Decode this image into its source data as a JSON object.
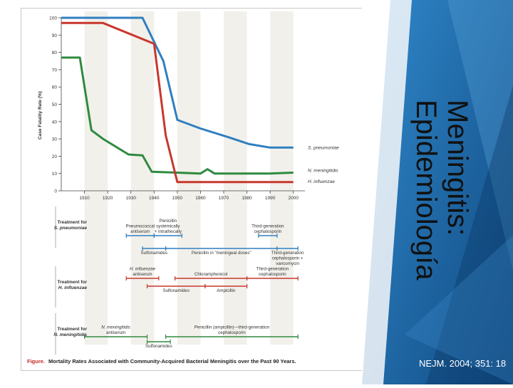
{
  "slide": {
    "title_line1": "Meningitis:",
    "title_line2": "Epidemiología",
    "citation": "NEJM. 2004; 351: 18"
  },
  "figure": {
    "caption_label": "Figure.",
    "caption_text": "Mortality Rates Associated with Community-Acquired Bacterial Meningitis over the Past 90 Years."
  },
  "chart_data": {
    "type": "line",
    "ylabel": "Case Fatality Rate (%)",
    "xlabel": "",
    "xlim": [
      1900,
      2005
    ],
    "ylim": [
      0,
      100
    ],
    "xticks": [
      1910,
      1920,
      1930,
      1940,
      1950,
      1960,
      1970,
      1980,
      1990,
      2000
    ],
    "yticks": [
      0,
      10,
      20,
      30,
      40,
      50,
      60,
      70,
      80,
      90,
      100
    ],
    "shaded_decades": [
      [
        1910,
        1920
      ],
      [
        1930,
        1940
      ],
      [
        1950,
        1960
      ],
      [
        1970,
        1980
      ],
      [
        1990,
        2000
      ]
    ],
    "series": [
      {
        "name": "S. pneumoniae",
        "color": "#2f7fc1",
        "x": [
          1900,
          1935,
          1944,
          1950,
          1960,
          1972,
          1981,
          1990,
          2000
        ],
        "y": [
          100,
          100,
          75,
          41,
          36,
          31,
          27,
          25,
          25
        ]
      },
      {
        "name": "N. meningitidis",
        "color": "#2f8a3f",
        "x": [
          1900,
          1908,
          1913,
          1918,
          1929,
          1935,
          1939,
          1950,
          1960,
          1963,
          1966,
          1972,
          1980,
          1990,
          2000
        ],
        "y": [
          77,
          77,
          35,
          30,
          21,
          20.5,
          11,
          10.5,
          10,
          12.5,
          10,
          10,
          10,
          10,
          10.5
        ]
      },
      {
        "name": "H. influenzae",
        "color": "#c8372d",
        "x": [
          1900,
          1918,
          1940,
          1945,
          1950,
          1960,
          1970,
          1980,
          1990,
          2000
        ],
        "y": [
          97,
          97,
          85,
          32,
          5,
          5,
          5,
          5,
          5,
          5
        ]
      }
    ]
  },
  "treatments": {
    "groups": [
      {
        "label_line1": "Treatment for",
        "label_line2": "S. pneumoniae",
        "items": [
          {
            "line1": "Pneumococcal",
            "line2": "antiserum",
            "line3": "",
            "start": 1928,
            "end": 1940,
            "color": "#2f7fc1",
            "row": 0
          },
          {
            "line1": "Penicillin",
            "line2": "systemically",
            "line3": "+ intrathecally",
            "start": 1940,
            "end": 1952,
            "color": "#2f7fc1",
            "row": 0
          },
          {
            "line1": "Third-generation",
            "line2": "cephalosporin",
            "line3": "",
            "start": 1985,
            "end": 1993,
            "color": "#2f7fc1",
            "row": 0
          },
          {
            "line1": "Sulfonamides",
            "line2": "",
            "line3": "",
            "start": 1935,
            "end": 1945,
            "color": "#2f7fc1",
            "row": 1
          },
          {
            "line1": "Penicillin in \"meningeal doses\"",
            "line2": "",
            "line3": "",
            "start": 1945,
            "end": 1993,
            "color": "#2f7fc1",
            "row": 1
          },
          {
            "line1": "Third-generation",
            "line2": "cephalosporin +",
            "line3": "vancomycin",
            "start": 1993,
            "end": 2002,
            "color": "#2f7fc1",
            "row": 1
          }
        ]
      },
      {
        "label_line1": "Treatment for",
        "label_line2": "H. influenzae",
        "items": [
          {
            "line1": "H. influenzae",
            "line2": "antiserum",
            "line3": "",
            "start": 1928,
            "end": 1942,
            "color": "#c8372d",
            "row": 0
          },
          {
            "line1": "Chloramphenicol",
            "line2": "",
            "line3": "",
            "start": 1949,
            "end": 1980,
            "color": "#c8372d",
            "row": 0
          },
          {
            "line1": "Third-generation",
            "line2": "cephalosporin",
            "line3": "",
            "start": 1980,
            "end": 2002,
            "color": "#c8372d",
            "row": 0
          },
          {
            "line1": "Sulfonamides",
            "line2": "",
            "line3": "",
            "start": 1937,
            "end": 1962,
            "color": "#c8372d",
            "row": 1
          },
          {
            "line1": "Ampicillin",
            "line2": "",
            "line3": "",
            "start": 1962,
            "end": 1980,
            "color": "#c8372d",
            "row": 1
          }
        ]
      },
      {
        "label_line1": "Treatment for",
        "label_line2": "N. meningitidis",
        "items": [
          {
            "line1": "N. meningitidis",
            "line2": "antiserum",
            "line3": "",
            "start": 1910,
            "end": 1937,
            "color": "#2f8a3f",
            "row": 0
          },
          {
            "line1": "Penicillin (ampicillin)—third-generation",
            "line2": "cephalosporin",
            "line3": "",
            "start": 1945,
            "end": 2002,
            "color": "#2f8a3f",
            "row": 0
          },
          {
            "line1": "Sulfonamides",
            "line2": "",
            "line3": "",
            "start": 1937,
            "end": 1947,
            "color": "#2f8a3f",
            "row": 1
          }
        ]
      }
    ]
  },
  "colors": {
    "panel_blue": "#1f6fb0",
    "panel_dark": "#0e3f73",
    "grid_band": "#f2f0ea",
    "caption_red": "#c22b25"
  }
}
